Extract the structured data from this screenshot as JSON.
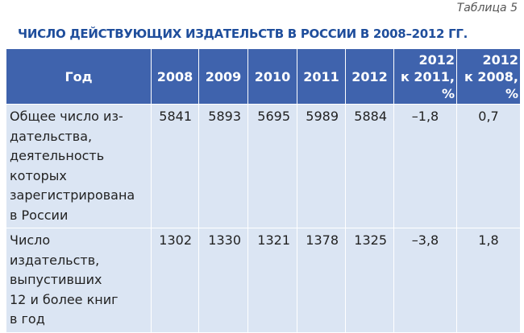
{
  "caption": "Таблица 5",
  "title": "ЧИСЛО ДЕЙСТВУЮЩИХ ИЗДАТЕЛЬСТВ В РОССИИ В 2008–2012 ГГ.",
  "table": {
    "header": [
      [
        "Год"
      ],
      [
        "2008"
      ],
      [
        "2009"
      ],
      [
        "2010"
      ],
      [
        "2011"
      ],
      [
        "2012"
      ],
      [
        "2012",
        "к 2011,",
        "%"
      ],
      [
        "2012",
        "к 2008,",
        "%"
      ]
    ],
    "rows": [
      {
        "label": [
          "Общее число из-",
          "дательства,",
          "деятельность",
          "которых",
          "зарегистрирована",
          "в России"
        ],
        "cells": [
          5841,
          5893,
          5695,
          5989,
          5884,
          "–1,8",
          "0,7"
        ]
      },
      {
        "label": [
          "Число",
          "издательств,",
          "выпустивших",
          "12 и более книг",
          "в год"
        ],
        "cells": [
          1302,
          1330,
          1321,
          1378,
          1325,
          "–3,8",
          "1,8"
        ]
      }
    ]
  }
}
